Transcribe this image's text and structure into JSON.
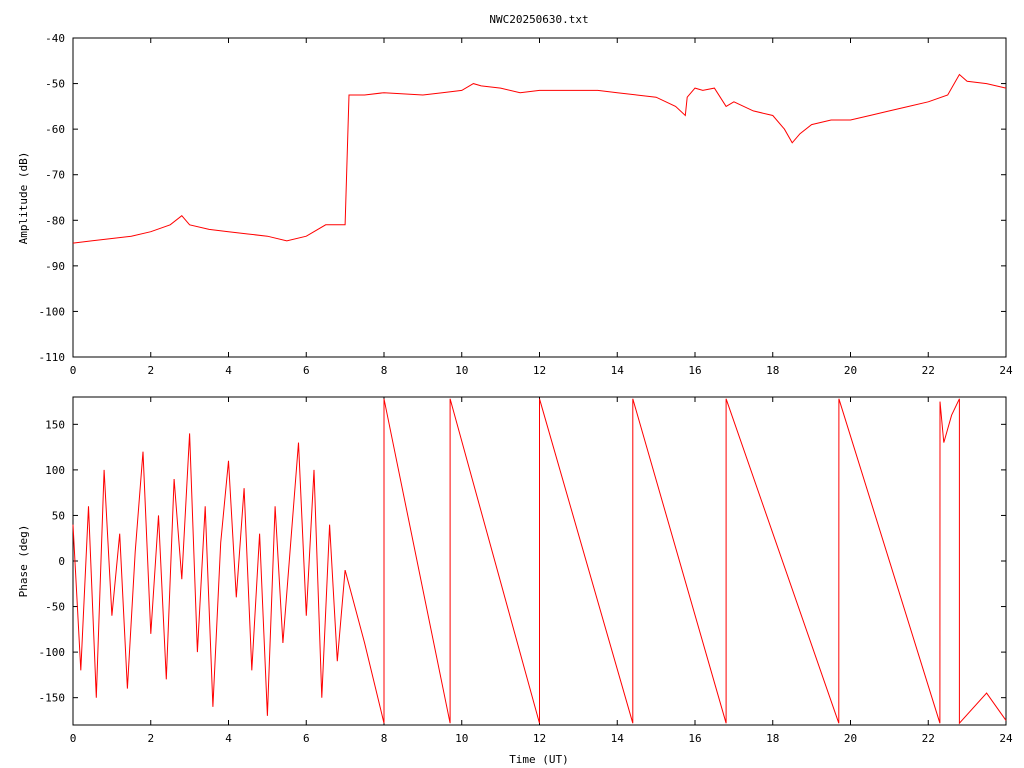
{
  "title": "NWC20250630.txt",
  "chart_data": [
    {
      "type": "line",
      "title": "NWC20250630.txt",
      "xlabel": "",
      "ylabel": "Amplitude (dB)",
      "xlim": [
        0,
        24
      ],
      "ylim": [
        -110,
        -40
      ],
      "xticks": [
        "0",
        "2",
        "4",
        "6",
        "8",
        "10",
        "12",
        "14",
        "16",
        "18",
        "20",
        "22",
        "24"
      ],
      "yticks": [
        "-40",
        "-50",
        "-60",
        "-70",
        "-80",
        "-90",
        "-100",
        "-110"
      ],
      "color": "#ff0000",
      "grid": false,
      "series": [
        {
          "x": [
            0,
            0.5,
            1,
            1.5,
            2,
            2.5,
            2.8,
            3,
            3.5,
            4,
            4.5,
            5,
            5.5,
            6,
            6.5,
            7,
            7.1,
            7.2,
            7.5,
            8,
            9,
            9.5,
            10,
            10.3,
            10.5,
            11,
            11.5,
            12,
            12.5,
            13,
            13.5,
            14,
            14.5,
            15,
            15.5,
            15.75,
            15.8,
            16,
            16.2,
            16.5,
            16.8,
            17,
            17.5,
            18,
            18.3,
            18.5,
            18.7,
            19,
            19.5,
            20,
            20.5,
            21,
            21.5,
            22,
            22.5,
            22.8,
            23,
            23.5,
            24
          ],
          "y": [
            -85,
            -84.5,
            -84,
            -83.5,
            -82.5,
            -81,
            -79,
            -81,
            -82,
            -82.5,
            -83,
            -83.5,
            -84.5,
            -83.5,
            -81,
            -81,
            -52.5,
            -52.5,
            -52.5,
            -52,
            -52.5,
            -52,
            -51.5,
            -50,
            -50.5,
            -51,
            -52,
            -51.5,
            -51.5,
            -51.5,
            -51.5,
            -52,
            -52.5,
            -53,
            -55,
            -57,
            -53,
            -51,
            -51.5,
            -51,
            -55,
            -54,
            -56,
            -57,
            -60,
            -63,
            -61,
            -59,
            -58,
            -58,
            -57,
            -56,
            -55,
            -54,
            -52.5,
            -48,
            -49.5,
            -50,
            -51
          ]
        }
      ]
    },
    {
      "type": "line",
      "title": "",
      "xlabel": "Time (UT)",
      "ylabel": "Phase (deg)",
      "xlim": [
        0,
        24
      ],
      "ylim": [
        -180,
        180
      ],
      "xticks": [
        "0",
        "2",
        "4",
        "6",
        "8",
        "10",
        "12",
        "14",
        "16",
        "18",
        "20",
        "22",
        "24"
      ],
      "yticks": [
        "150",
        "100",
        "50",
        "0",
        "-50",
        "-100",
        "-150"
      ],
      "color": "#ff0000",
      "grid": false,
      "series": [
        {
          "x": [
            0,
            0.2,
            0.4,
            0.6,
            0.8,
            1.0,
            1.2,
            1.4,
            1.6,
            1.8,
            2.0,
            2.2,
            2.4,
            2.6,
            2.8,
            3.0,
            3.2,
            3.4,
            3.6,
            3.8,
            4.0,
            4.2,
            4.4,
            4.6,
            4.8,
            5.0,
            5.2,
            5.4,
            5.6,
            5.8,
            6.0,
            6.2,
            6.4,
            6.6,
            6.8,
            7.0,
            7.5,
            8.0,
            8.001,
            9.7,
            9.701,
            12.0,
            12.001,
            14.4,
            14.401,
            16.8,
            16.801,
            19.7,
            19.701,
            22.3,
            22.301,
            22.4,
            22.6,
            22.8,
            22.801,
            23.5,
            24.0
          ],
          "y": [
            40,
            -120,
            60,
            -150,
            100,
            -60,
            30,
            -140,
            10,
            120,
            -80,
            50,
            -130,
            90,
            -20,
            140,
            -100,
            60,
            -160,
            20,
            110,
            -40,
            80,
            -120,
            30,
            -170,
            60,
            -90,
            20,
            130,
            -60,
            100,
            -150,
            40,
            -110,
            -10,
            -90,
            -178,
            178,
            -178,
            178,
            -178,
            178,
            -178,
            178,
            -178,
            178,
            -178,
            178,
            -178,
            175,
            130,
            160,
            178,
            -178,
            -145,
            -175
          ]
        }
      ]
    }
  ]
}
